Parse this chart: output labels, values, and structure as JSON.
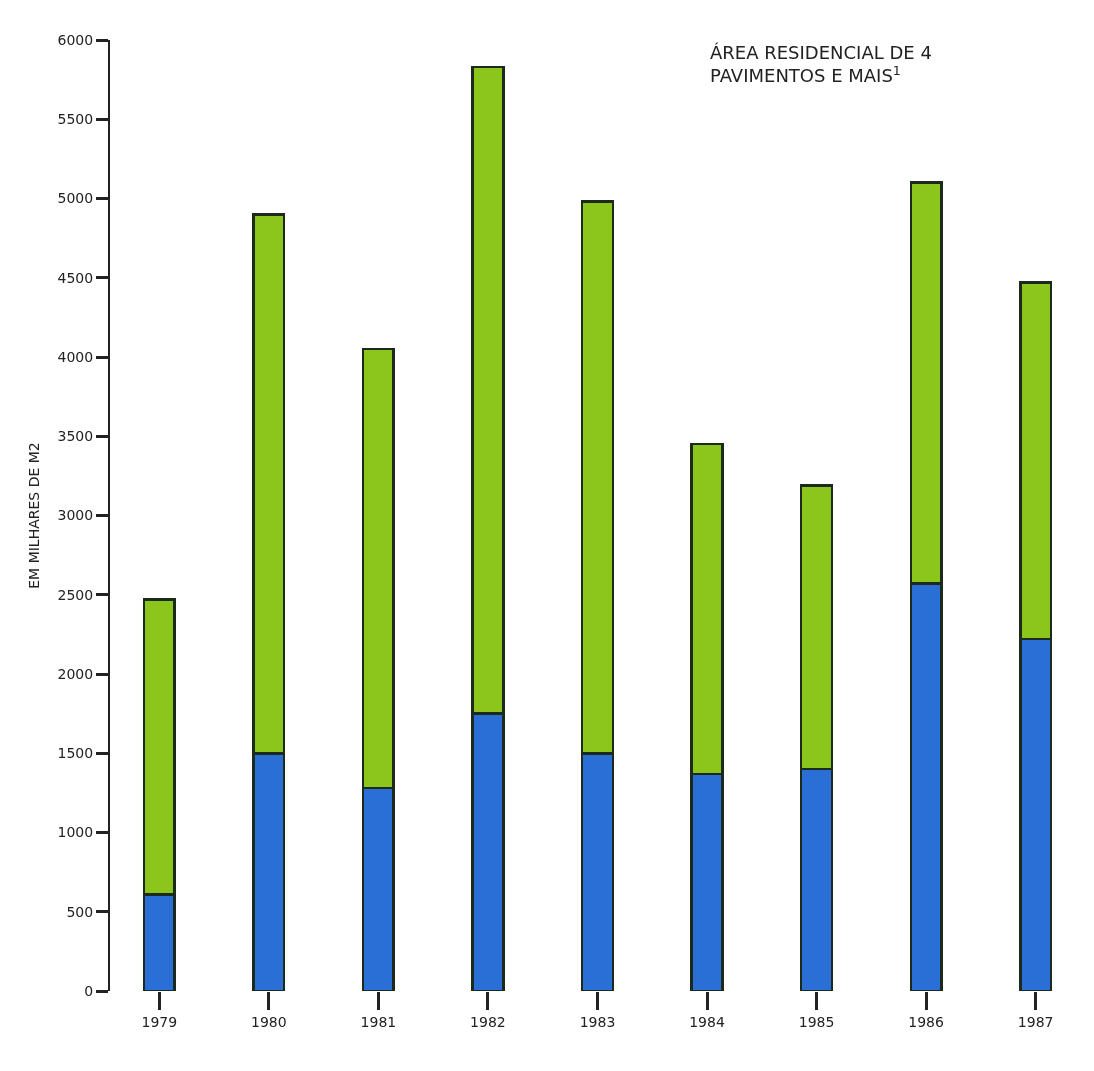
{
  "chart_data": {
    "type": "bar",
    "title": "ÁREA RESIDENCIAL DE 4 PAVIMENTOS E MAIS$^{1}$",
    "ylabel": "EM MILHARES DE M2",
    "categories": [
      "1979",
      "1980",
      "1981",
      "1982",
      "1983",
      "1984",
      "1985",
      "1986",
      "1987"
    ],
    "stacked": true,
    "series": [
      {
        "color": "#2a6fd6",
        "values": [
          610,
          1500,
          1280,
          1750,
          1500,
          1370,
          1400,
          2570,
          2220
        ]
      },
      {
        "color": "#8cc61c",
        "values": [
          1860,
          3400,
          2770,
          4080,
          3480,
          2080,
          1790,
          2530,
          2250
        ]
      }
    ],
    "ylim": [
      0,
      6000
    ],
    "yticks": [
      0,
      500,
      1000,
      1500,
      2000,
      2500,
      3000,
      3500,
      4000,
      4500,
      5000,
      5500,
      6000
    ]
  }
}
